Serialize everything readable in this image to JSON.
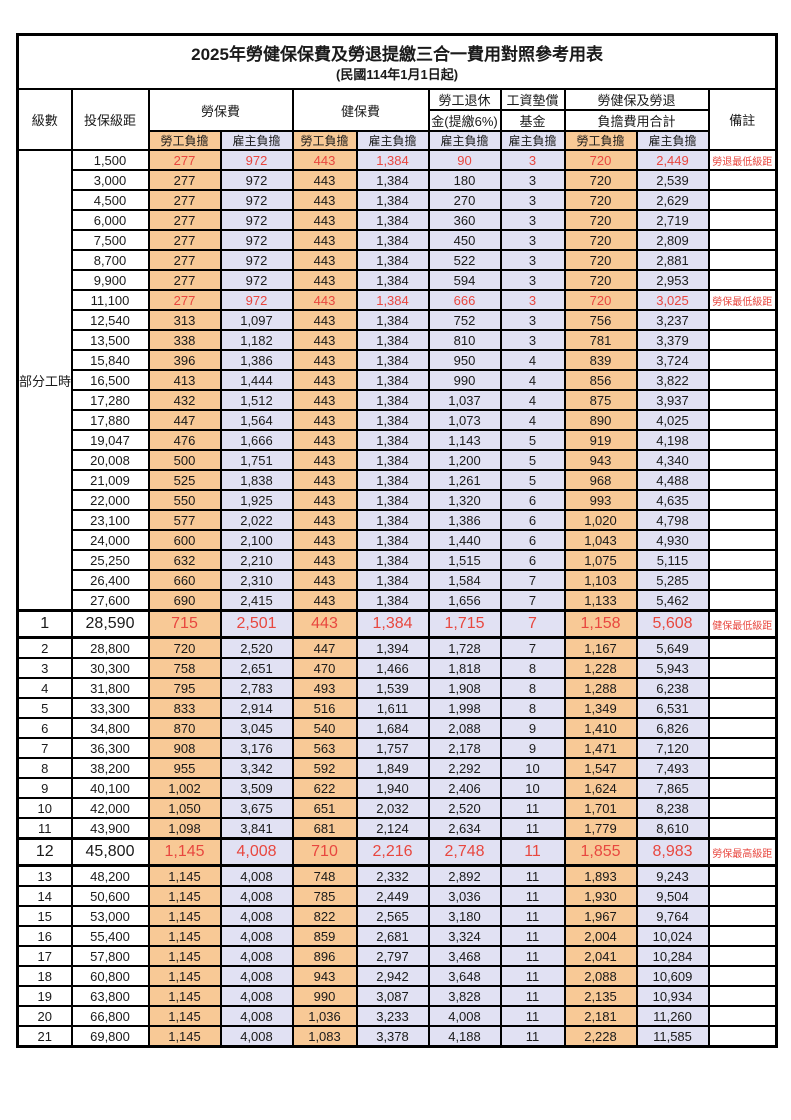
{
  "title": "2025年勞健保保費及勞退提繳三合一費用對照參考用表",
  "subtitle": "(民國114年1月1日起)",
  "colors": {
    "employee_bg": "#f8c996",
    "employer_bg": "#e1e1f3",
    "highlight_red": "#e8473f",
    "border": "#000000"
  },
  "columns": {
    "level": "級數",
    "salary": "投保級距",
    "labor_insurance": "勞保費",
    "health_insurance": "健保費",
    "pension_line1": "勞工退休",
    "pension_line2": "金(提繳6%)",
    "wage_fund_line1": "工資墊償",
    "wage_fund_line2": "基金",
    "total_line1": "勞健保及勞退",
    "total_line2": "負擔費用合計",
    "note": "備註",
    "employee": "勞工負擔",
    "employer": "雇主負擔"
  },
  "part_time_label": "部分工時",
  "part_time_row_count": 23,
  "fee_column_kinds": [
    "emp",
    "er",
    "emp",
    "er",
    "er",
    "er",
    "emp",
    "er"
  ],
  "rows": [
    {
      "level": "",
      "salary": "1,500",
      "fees": [
        "277",
        "972",
        "443",
        "1,384",
        "90",
        "3",
        "720",
        "2,449"
      ],
      "note": "勞退最低級距",
      "red": true,
      "big": false
    },
    {
      "level": "",
      "salary": "3,000",
      "fees": [
        "277",
        "972",
        "443",
        "1,384",
        "180",
        "3",
        "720",
        "2,539"
      ],
      "note": "",
      "red": false,
      "big": false
    },
    {
      "level": "",
      "salary": "4,500",
      "fees": [
        "277",
        "972",
        "443",
        "1,384",
        "270",
        "3",
        "720",
        "2,629"
      ],
      "note": "",
      "red": false,
      "big": false
    },
    {
      "level": "",
      "salary": "6,000",
      "fees": [
        "277",
        "972",
        "443",
        "1,384",
        "360",
        "3",
        "720",
        "2,719"
      ],
      "note": "",
      "red": false,
      "big": false
    },
    {
      "level": "",
      "salary": "7,500",
      "fees": [
        "277",
        "972",
        "443",
        "1,384",
        "450",
        "3",
        "720",
        "2,809"
      ],
      "note": "",
      "red": false,
      "big": false
    },
    {
      "level": "",
      "salary": "8,700",
      "fees": [
        "277",
        "972",
        "443",
        "1,384",
        "522",
        "3",
        "720",
        "2,881"
      ],
      "note": "",
      "red": false,
      "big": false
    },
    {
      "level": "",
      "salary": "9,900",
      "fees": [
        "277",
        "972",
        "443",
        "1,384",
        "594",
        "3",
        "720",
        "2,953"
      ],
      "note": "",
      "red": false,
      "big": false
    },
    {
      "level": "",
      "salary": "11,100",
      "fees": [
        "277",
        "972",
        "443",
        "1,384",
        "666",
        "3",
        "720",
        "3,025"
      ],
      "note": "勞保最低級距",
      "red": true,
      "big": false
    },
    {
      "level": "",
      "salary": "12,540",
      "fees": [
        "313",
        "1,097",
        "443",
        "1,384",
        "752",
        "3",
        "756",
        "3,237"
      ],
      "note": "",
      "red": false,
      "big": false
    },
    {
      "level": "",
      "salary": "13,500",
      "fees": [
        "338",
        "1,182",
        "443",
        "1,384",
        "810",
        "3",
        "781",
        "3,379"
      ],
      "note": "",
      "red": false,
      "big": false
    },
    {
      "level": "",
      "salary": "15,840",
      "fees": [
        "396",
        "1,386",
        "443",
        "1,384",
        "950",
        "4",
        "839",
        "3,724"
      ],
      "note": "",
      "red": false,
      "big": false
    },
    {
      "level": "",
      "salary": "16,500",
      "fees": [
        "413",
        "1,444",
        "443",
        "1,384",
        "990",
        "4",
        "856",
        "3,822"
      ],
      "note": "",
      "red": false,
      "big": false
    },
    {
      "level": "",
      "salary": "17,280",
      "fees": [
        "432",
        "1,512",
        "443",
        "1,384",
        "1,037",
        "4",
        "875",
        "3,937"
      ],
      "note": "",
      "red": false,
      "big": false
    },
    {
      "level": "",
      "salary": "17,880",
      "fees": [
        "447",
        "1,564",
        "443",
        "1,384",
        "1,073",
        "4",
        "890",
        "4,025"
      ],
      "note": "",
      "red": false,
      "big": false
    },
    {
      "level": "",
      "salary": "19,047",
      "fees": [
        "476",
        "1,666",
        "443",
        "1,384",
        "1,143",
        "5",
        "919",
        "4,198"
      ],
      "note": "",
      "red": false,
      "big": false
    },
    {
      "level": "",
      "salary": "20,008",
      "fees": [
        "500",
        "1,751",
        "443",
        "1,384",
        "1,200",
        "5",
        "943",
        "4,340"
      ],
      "note": "",
      "red": false,
      "big": false
    },
    {
      "level": "",
      "salary": "21,009",
      "fees": [
        "525",
        "1,838",
        "443",
        "1,384",
        "1,261",
        "5",
        "968",
        "4,488"
      ],
      "note": "",
      "red": false,
      "big": false
    },
    {
      "level": "",
      "salary": "22,000",
      "fees": [
        "550",
        "1,925",
        "443",
        "1,384",
        "1,320",
        "6",
        "993",
        "4,635"
      ],
      "note": "",
      "red": false,
      "big": false
    },
    {
      "level": "",
      "salary": "23,100",
      "fees": [
        "577",
        "2,022",
        "443",
        "1,384",
        "1,386",
        "6",
        "1,020",
        "4,798"
      ],
      "note": "",
      "red": false,
      "big": false
    },
    {
      "level": "",
      "salary": "24,000",
      "fees": [
        "600",
        "2,100",
        "443",
        "1,384",
        "1,440",
        "6",
        "1,043",
        "4,930"
      ],
      "note": "",
      "red": false,
      "big": false
    },
    {
      "level": "",
      "salary": "25,250",
      "fees": [
        "632",
        "2,210",
        "443",
        "1,384",
        "1,515",
        "6",
        "1,075",
        "5,115"
      ],
      "note": "",
      "red": false,
      "big": false
    },
    {
      "level": "",
      "salary": "26,400",
      "fees": [
        "660",
        "2,310",
        "443",
        "1,384",
        "1,584",
        "7",
        "1,103",
        "5,285"
      ],
      "note": "",
      "red": false,
      "big": false
    },
    {
      "level": "",
      "salary": "27,600",
      "fees": [
        "690",
        "2,415",
        "443",
        "1,384",
        "1,656",
        "7",
        "1,133",
        "5,462"
      ],
      "note": "",
      "red": false,
      "big": false
    },
    {
      "level": "1",
      "salary": "28,590",
      "fees": [
        "715",
        "2,501",
        "443",
        "1,384",
        "1,715",
        "7",
        "1,158",
        "5,608"
      ],
      "note": "健保最低級距",
      "red": true,
      "big": true
    },
    {
      "level": "2",
      "salary": "28,800",
      "fees": [
        "720",
        "2,520",
        "447",
        "1,394",
        "1,728",
        "7",
        "1,167",
        "5,649"
      ],
      "note": "",
      "red": false,
      "big": false
    },
    {
      "level": "3",
      "salary": "30,300",
      "fees": [
        "758",
        "2,651",
        "470",
        "1,466",
        "1,818",
        "8",
        "1,228",
        "5,943"
      ],
      "note": "",
      "red": false,
      "big": false
    },
    {
      "level": "4",
      "salary": "31,800",
      "fees": [
        "795",
        "2,783",
        "493",
        "1,539",
        "1,908",
        "8",
        "1,288",
        "6,238"
      ],
      "note": "",
      "red": false,
      "big": false
    },
    {
      "level": "5",
      "salary": "33,300",
      "fees": [
        "833",
        "2,914",
        "516",
        "1,611",
        "1,998",
        "8",
        "1,349",
        "6,531"
      ],
      "note": "",
      "red": false,
      "big": false
    },
    {
      "level": "6",
      "salary": "34,800",
      "fees": [
        "870",
        "3,045",
        "540",
        "1,684",
        "2,088",
        "9",
        "1,410",
        "6,826"
      ],
      "note": "",
      "red": false,
      "big": false
    },
    {
      "level": "7",
      "salary": "36,300",
      "fees": [
        "908",
        "3,176",
        "563",
        "1,757",
        "2,178",
        "9",
        "1,471",
        "7,120"
      ],
      "note": "",
      "red": false,
      "big": false
    },
    {
      "level": "8",
      "salary": "38,200",
      "fees": [
        "955",
        "3,342",
        "592",
        "1,849",
        "2,292",
        "10",
        "1,547",
        "7,493"
      ],
      "note": "",
      "red": false,
      "big": false
    },
    {
      "level": "9",
      "salary": "40,100",
      "fees": [
        "1,002",
        "3,509",
        "622",
        "1,940",
        "2,406",
        "10",
        "1,624",
        "7,865"
      ],
      "note": "",
      "red": false,
      "big": false
    },
    {
      "level": "10",
      "salary": "42,000",
      "fees": [
        "1,050",
        "3,675",
        "651",
        "2,032",
        "2,520",
        "11",
        "1,701",
        "8,238"
      ],
      "note": "",
      "red": false,
      "big": false
    },
    {
      "level": "11",
      "salary": "43,900",
      "fees": [
        "1,098",
        "3,841",
        "681",
        "2,124",
        "2,634",
        "11",
        "1,779",
        "8,610"
      ],
      "note": "",
      "red": false,
      "big": false
    },
    {
      "level": "12",
      "salary": "45,800",
      "fees": [
        "1,145",
        "4,008",
        "710",
        "2,216",
        "2,748",
        "11",
        "1,855",
        "8,983"
      ],
      "note": "勞保最高級距",
      "red": true,
      "big": true
    },
    {
      "level": "13",
      "salary": "48,200",
      "fees": [
        "1,145",
        "4,008",
        "748",
        "2,332",
        "2,892",
        "11",
        "1,893",
        "9,243"
      ],
      "note": "",
      "red": false,
      "big": false
    },
    {
      "level": "14",
      "salary": "50,600",
      "fees": [
        "1,145",
        "4,008",
        "785",
        "2,449",
        "3,036",
        "11",
        "1,930",
        "9,504"
      ],
      "note": "",
      "red": false,
      "big": false
    },
    {
      "level": "15",
      "salary": "53,000",
      "fees": [
        "1,145",
        "4,008",
        "822",
        "2,565",
        "3,180",
        "11",
        "1,967",
        "9,764"
      ],
      "note": "",
      "red": false,
      "big": false
    },
    {
      "level": "16",
      "salary": "55,400",
      "fees": [
        "1,145",
        "4,008",
        "859",
        "2,681",
        "3,324",
        "11",
        "2,004",
        "10,024"
      ],
      "note": "",
      "red": false,
      "big": false
    },
    {
      "level": "17",
      "salary": "57,800",
      "fees": [
        "1,145",
        "4,008",
        "896",
        "2,797",
        "3,468",
        "11",
        "2,041",
        "10,284"
      ],
      "note": "",
      "red": false,
      "big": false
    },
    {
      "level": "18",
      "salary": "60,800",
      "fees": [
        "1,145",
        "4,008",
        "943",
        "2,942",
        "3,648",
        "11",
        "2,088",
        "10,609"
      ],
      "note": "",
      "red": false,
      "big": false
    },
    {
      "level": "19",
      "salary": "63,800",
      "fees": [
        "1,145",
        "4,008",
        "990",
        "3,087",
        "3,828",
        "11",
        "2,135",
        "10,934"
      ],
      "note": "",
      "red": false,
      "big": false
    },
    {
      "level": "20",
      "salary": "66,800",
      "fees": [
        "1,145",
        "4,008",
        "1,036",
        "3,233",
        "4,008",
        "11",
        "2,181",
        "11,260"
      ],
      "note": "",
      "red": false,
      "big": false
    },
    {
      "level": "21",
      "salary": "69,800",
      "fees": [
        "1,145",
        "4,008",
        "1,083",
        "3,378",
        "4,188",
        "11",
        "2,228",
        "11,585"
      ],
      "note": "",
      "red": false,
      "big": false
    }
  ]
}
